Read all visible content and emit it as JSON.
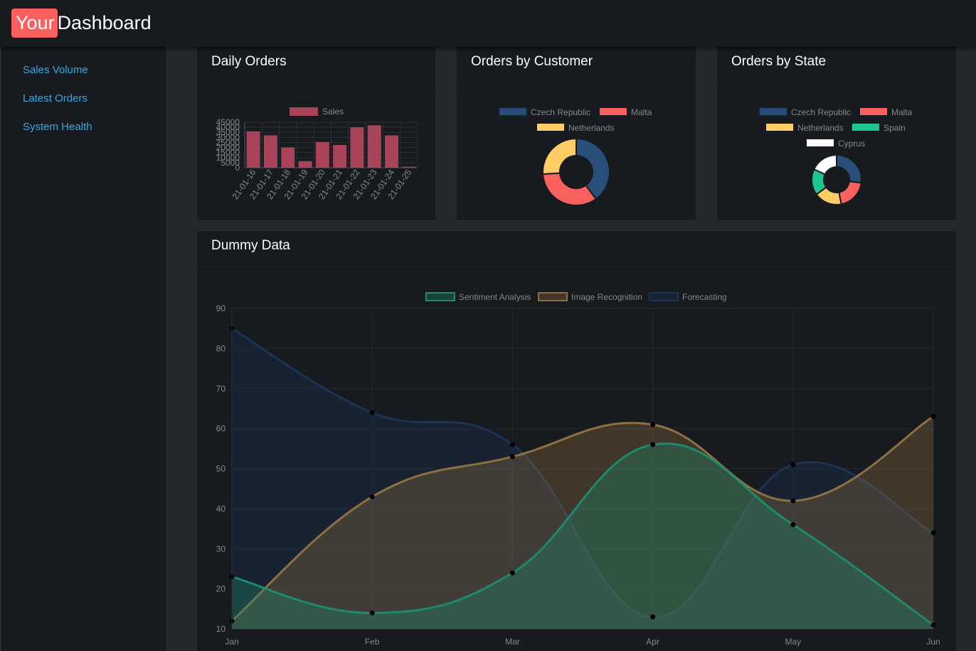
{
  "app": {
    "brand_highlight": "Your",
    "brand_rest": "Dashboard",
    "brand_color": "#f9605e"
  },
  "sidebar": {
    "items": [
      {
        "label": "Sales Volume"
      },
      {
        "label": "Latest Orders"
      },
      {
        "label": "System Health"
      }
    ]
  },
  "cards": {
    "daily_orders": {
      "title": "Daily Orders"
    },
    "orders_by_customer": {
      "title": "Orders by Customer"
    },
    "orders_by_state": {
      "title": "Orders by State"
    },
    "dummy_data": {
      "title": "Dummy Data"
    }
  },
  "chart_data": [
    {
      "id": "daily-orders",
      "type": "bar",
      "categories": [
        "21-01-16",
        "21-01-17",
        "21-01-18",
        "21-01-19",
        "21-01-20",
        "21-01-21",
        "21-01-22",
        "21-01-23",
        "21-01-24",
        "21-01-25"
      ],
      "series": [
        {
          "name": "Sales",
          "values": [
            36000,
            32000,
            20000,
            6500,
            25500,
            22500,
            40000,
            42000,
            32000,
            1000
          ],
          "color": "#a9435a"
        }
      ],
      "yticks": [
        0,
        5000,
        10000,
        15000,
        20000,
        25000,
        30000,
        35000,
        40000,
        45000
      ],
      "ylim": [
        0,
        45000
      ],
      "legend": "top"
    },
    {
      "id": "orders-by-customer",
      "type": "pie",
      "labels": [
        "Czech Republic",
        "Malta",
        "Netherlands"
      ],
      "values": [
        40,
        34,
        26
      ],
      "colors": [
        "#2a4e7a",
        "#f9605e",
        "#ffcc66"
      ],
      "legend": "top"
    },
    {
      "id": "orders-by-state",
      "type": "pie",
      "labels": [
        "Czech Republic",
        "Malta",
        "Netherlands",
        "Spain",
        "Cyprus"
      ],
      "values": [
        27,
        20,
        18,
        17,
        18
      ],
      "colors": [
        "#2a4e7a",
        "#f9605e",
        "#ffcc66",
        "#1dc690",
        "#ffffff"
      ],
      "legend": "top"
    },
    {
      "id": "dummy-data",
      "type": "area",
      "categories": [
        "Jan",
        "Feb",
        "Mar",
        "Apr",
        "May",
        "Jun"
      ],
      "series": [
        {
          "name": "Sentiment Analysis",
          "values": [
            23,
            14,
            24,
            56,
            36,
            11
          ],
          "color": "#1d8a6c"
        },
        {
          "name": "Image Recognition",
          "values": [
            12,
            43,
            53,
            61,
            42,
            63
          ],
          "color": "#8d7042"
        },
        {
          "name": "Forecasting",
          "values": [
            85,
            64,
            56,
            13,
            51,
            34
          ],
          "color": "#1b3455"
        }
      ],
      "yticks": [
        10,
        20,
        30,
        40,
        50,
        60,
        70,
        80,
        90
      ],
      "ylim": [
        10,
        90
      ],
      "legend": "top"
    }
  ]
}
